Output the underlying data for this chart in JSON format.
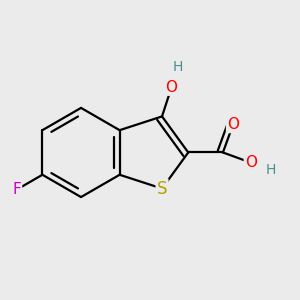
{
  "bg_color": "#ebebeb",
  "bond_color": "#000000",
  "bond_width": 1.6,
  "atom_colors": {
    "O": "#ff0000",
    "S": "#b8a000",
    "F": "#cc00cc",
    "H": "#4a8f8f",
    "C": "#000000"
  },
  "font_size": 11,
  "xlim": [
    -2.8,
    3.2
  ],
  "ylim": [
    -2.5,
    2.8
  ],
  "figsize": [
    3.0,
    3.0
  ],
  "dpi": 100
}
